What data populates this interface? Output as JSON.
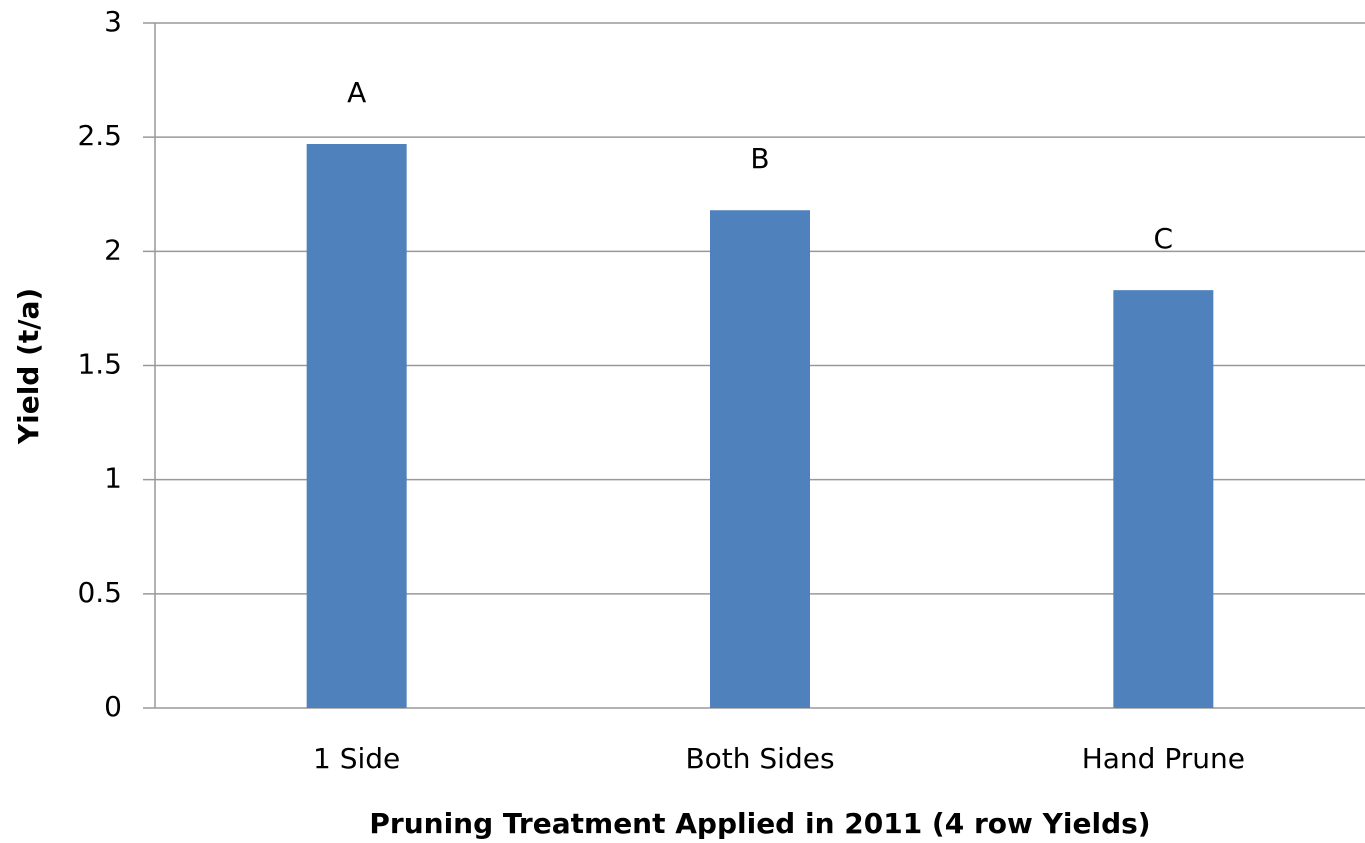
{
  "chart_data": {
    "type": "bar",
    "x_label": "Pruning Treatment Applied in 2011 (4 row Yields)",
    "y_label": "Yield (t/a)",
    "categories": [
      "1 Side",
      "Both Sides",
      "Hand Prune"
    ],
    "values": [
      2.47,
      2.18,
      1.83
    ],
    "annotations": [
      "A",
      "B",
      "C"
    ],
    "color": "#4f81bd",
    "ylim": [
      0,
      3
    ],
    "yticks": [
      0,
      0.5,
      1,
      1.5,
      2,
      2.5,
      3
    ],
    "grid": true
  }
}
